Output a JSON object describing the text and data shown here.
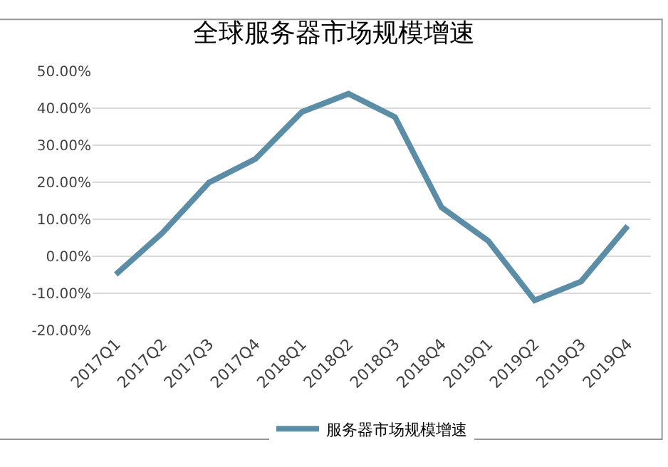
{
  "chart_data": {
    "type": "line",
    "title": "全球服务器市场规模增速",
    "categories": [
      "2017Q1",
      "2017Q2",
      "2017Q3",
      "2017Q4",
      "2018Q1",
      "2018Q2",
      "2018Q3",
      "2018Q4",
      "2019Q1",
      "2019Q2",
      "2019Q3",
      "2019Q4"
    ],
    "series": [
      {
        "name": "服务器市场规模增速",
        "color": "#5b8ea6",
        "values": [
          -4.9,
          6.3,
          19.9,
          26.3,
          39.0,
          43.9,
          37.6,
          13.2,
          4.2,
          -11.9,
          -6.8,
          8.2
        ]
      }
    ],
    "ylim": [
      -20,
      50
    ],
    "yticks": [
      {
        "value": -20,
        "label": "-20.00%"
      },
      {
        "value": -10,
        "label": "-10.00%"
      },
      {
        "value": 0,
        "label": "0.00%"
      },
      {
        "value": 10,
        "label": "10.00%"
      },
      {
        "value": 20,
        "label": "20.00%"
      },
      {
        "value": 30,
        "label": "30.00%"
      },
      {
        "value": 40,
        "label": "40.00%"
      },
      {
        "value": 50,
        "label": "50.00%"
      }
    ],
    "grid": "y",
    "legend": "bottom",
    "marker": "none",
    "line_style": "solid"
  }
}
